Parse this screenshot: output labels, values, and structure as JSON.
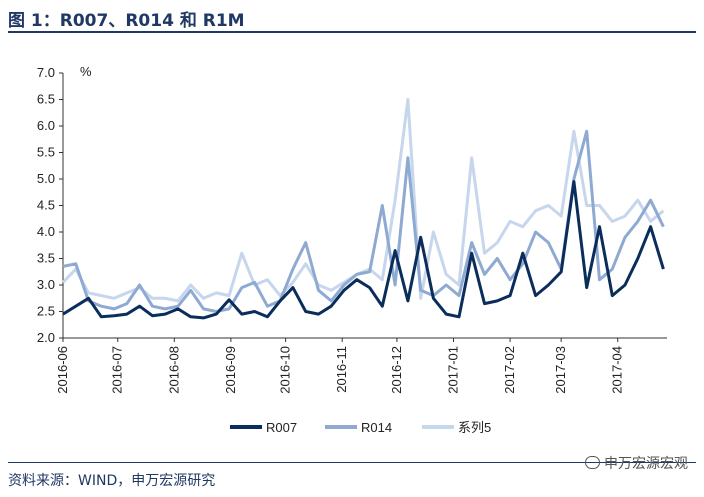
{
  "figure": {
    "title": "图 1：R007、R014 和 R1M",
    "source": "资料来源：WIND，申万宏源研究",
    "watermark": "申万宏源宏观"
  },
  "chart_data": {
    "type": "line",
    "title": "",
    "unit_label": "%",
    "xlabel": "",
    "ylabel": "",
    "ylim": [
      2.0,
      7.0
    ],
    "yticks": [
      "2.0",
      "2.5",
      "3.0",
      "3.5",
      "4.0",
      "4.5",
      "5.0",
      "5.5",
      "6.0",
      "6.5",
      "7.0"
    ],
    "xticks": [
      "2016-06",
      "2016-07",
      "2016-08",
      "2016-09",
      "2016-10",
      "2016-11",
      "2016-12",
      "2017-01",
      "2017-02",
      "2017-03",
      "2017-04"
    ],
    "grid": false,
    "legend_position": "bottom",
    "x": [
      "2016-06-01",
      "2016-06-08",
      "2016-06-15",
      "2016-06-22",
      "2016-06-29",
      "2016-07-06",
      "2016-07-13",
      "2016-07-20",
      "2016-07-27",
      "2016-08-03",
      "2016-08-10",
      "2016-08-17",
      "2016-08-24",
      "2016-08-31",
      "2016-09-07",
      "2016-09-14",
      "2016-09-21",
      "2016-09-28",
      "2016-10-05",
      "2016-10-12",
      "2016-10-19",
      "2016-10-26",
      "2016-11-02",
      "2016-11-09",
      "2016-11-16",
      "2016-11-23",
      "2016-11-30",
      "2016-12-07",
      "2016-12-14",
      "2016-12-21",
      "2016-12-28",
      "2017-01-04",
      "2017-01-11",
      "2017-01-18",
      "2017-01-25",
      "2017-02-01",
      "2017-02-08",
      "2017-02-15",
      "2017-02-22",
      "2017-03-01",
      "2017-03-08",
      "2017-03-15",
      "2017-03-22",
      "2017-03-29",
      "2017-04-05",
      "2017-04-12",
      "2017-04-19",
      "2017-04-26"
    ],
    "series": [
      {
        "name": "R007",
        "color": "#0b2d5b",
        "values": [
          2.45,
          2.6,
          2.75,
          2.4,
          2.42,
          2.45,
          2.6,
          2.42,
          2.45,
          2.55,
          2.4,
          2.38,
          2.45,
          2.72,
          2.45,
          2.5,
          2.4,
          2.7,
          2.95,
          2.5,
          2.45,
          2.6,
          2.9,
          3.1,
          2.95,
          2.6,
          3.65,
          2.7,
          3.9,
          2.75,
          2.45,
          2.4,
          3.6,
          2.65,
          2.7,
          2.8,
          3.6,
          2.8,
          3.0,
          3.25,
          4.95,
          2.95,
          4.1,
          2.8,
          3.0,
          3.5,
          4.1,
          3.3
        ]
      },
      {
        "name": "R014",
        "color": "#8eaad2",
        "values": [
          3.35,
          3.4,
          2.7,
          2.6,
          2.55,
          2.65,
          3.0,
          2.6,
          2.55,
          2.6,
          2.9,
          2.55,
          2.5,
          2.55,
          2.95,
          3.05,
          2.6,
          2.7,
          3.3,
          3.8,
          2.9,
          2.7,
          3.0,
          3.2,
          3.25,
          4.5,
          3.0,
          5.4,
          2.9,
          2.8,
          3.0,
          2.8,
          3.8,
          3.2,
          3.5,
          3.1,
          3.4,
          4.0,
          3.8,
          3.3,
          5.0,
          5.9,
          3.1,
          3.3,
          3.9,
          4.2,
          4.6,
          4.1
        ]
      },
      {
        "name": "系列5",
        "color": "#c6d6ec",
        "values": [
          3.05,
          3.3,
          2.85,
          2.8,
          2.75,
          2.85,
          2.95,
          2.75,
          2.75,
          2.7,
          3.0,
          2.75,
          2.85,
          2.8,
          3.6,
          3.0,
          3.1,
          2.8,
          3.05,
          3.4,
          3.0,
          2.9,
          3.05,
          3.2,
          3.3,
          3.1,
          4.6,
          6.5,
          2.75,
          4.0,
          3.2,
          3.0,
          5.4,
          3.6,
          3.8,
          4.2,
          4.1,
          4.4,
          4.5,
          4.3,
          5.9,
          4.5,
          4.5,
          4.2,
          4.3,
          4.6,
          4.2,
          4.4
        ]
      }
    ]
  }
}
